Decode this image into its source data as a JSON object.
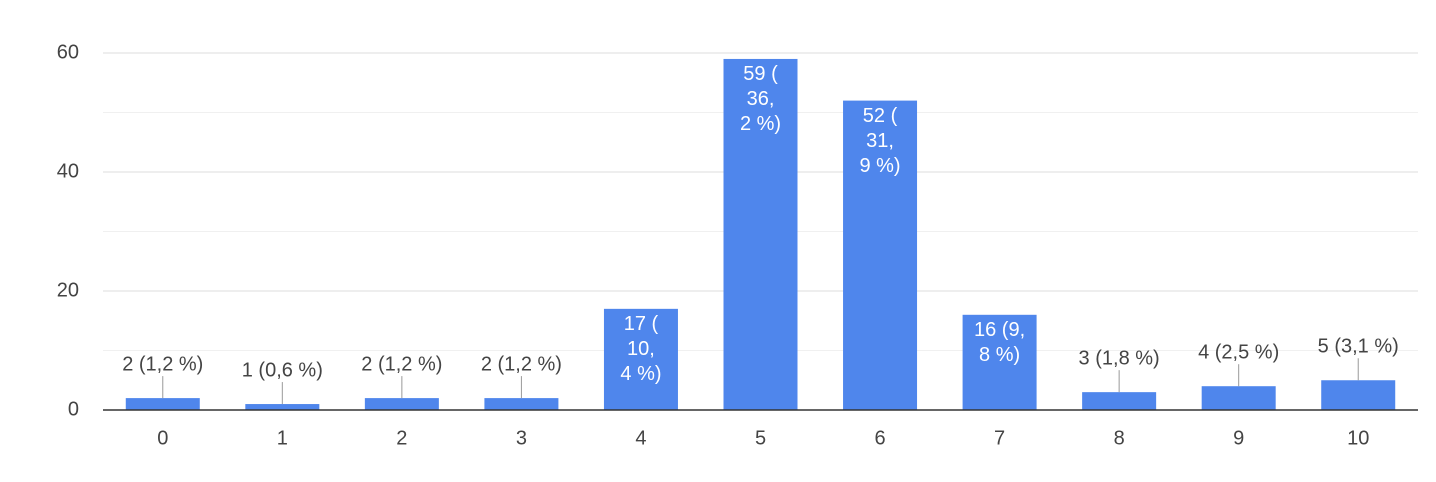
{
  "chart_data": {
    "type": "bar",
    "categories": [
      "0",
      "1",
      "2",
      "3",
      "4",
      "5",
      "6",
      "7",
      "8",
      "9",
      "10"
    ],
    "values": [
      2,
      1,
      2,
      2,
      17,
      59,
      52,
      16,
      3,
      4,
      5
    ],
    "value_labels": [
      "2 (1,2 %)",
      "1 (0,6 %)",
      "2 (1,2 %)",
      "2 (1,2 %)",
      "17 (\n10,\n4 %)",
      "59 (\n36,\n2 %)",
      "52 (\n31,\n9 %)",
      "16 (9,\n8 %)",
      "3 (1,8 %)",
      "4 (2,5 %)",
      "5 (3,1 %)"
    ],
    "color": "#4f86ec",
    "ylim": [
      0,
      60
    ],
    "yticks": [
      0,
      20,
      40,
      60
    ],
    "grid": true,
    "minor_grid": true
  }
}
